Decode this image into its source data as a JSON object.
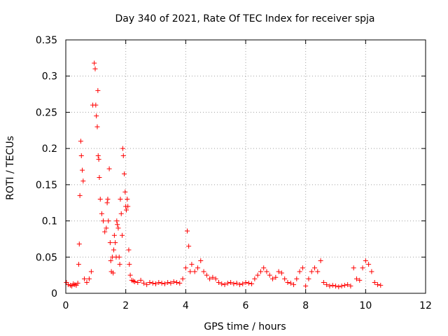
{
  "chart_data": {
    "type": "scatter",
    "title": "Day 340 of 2021, Rate Of TEC Index for receiver spja",
    "xlabel": "GPS time / hours",
    "ylabel": "ROTI / TECUs",
    "xlim": [
      0,
      12
    ],
    "ylim": [
      0,
      0.35
    ],
    "xticks": [
      0,
      2,
      4,
      6,
      8,
      10,
      12
    ],
    "xtick_labels": [
      "0",
      "2",
      "4",
      "6",
      "8",
      "10",
      "12"
    ],
    "yticks": [
      0,
      0.05,
      0.1,
      0.15,
      0.2,
      0.25,
      0.3,
      0.35
    ],
    "ytick_labels": [
      "0",
      "0.05",
      "0.1",
      "0.15",
      "0.2",
      "0.25",
      "0.3",
      "0.35"
    ],
    "grid": true,
    "marker": "+",
    "color": "#ff0000",
    "series": [
      {
        "name": "ROTI",
        "x": [
          0.02,
          0.08,
          0.15,
          0.2,
          0.25,
          0.3,
          0.35,
          0.4,
          0.43,
          0.45,
          0.47,
          0.5,
          0.52,
          0.55,
          0.58,
          0.62,
          0.7,
          0.78,
          0.85,
          0.9,
          0.95,
          0.98,
          1.0,
          1.02,
          1.05,
          1.07,
          1.08,
          1.1,
          1.12,
          1.15,
          1.2,
          1.25,
          1.3,
          1.35,
          1.38,
          1.4,
          1.42,
          1.45,
          1.48,
          1.5,
          1.52,
          1.55,
          1.58,
          1.6,
          1.62,
          1.65,
          1.68,
          1.7,
          1.72,
          1.75,
          1.78,
          1.8,
          1.82,
          1.85,
          1.88,
          1.9,
          1.92,
          1.95,
          1.98,
          2.0,
          2.02,
          2.05,
          2.07,
          2.1,
          2.12,
          2.15,
          2.2,
          2.25,
          2.3,
          2.4,
          2.5,
          2.6,
          2.7,
          2.8,
          2.9,
          3.0,
          3.1,
          3.2,
          3.3,
          3.4,
          3.5,
          3.6,
          3.7,
          3.8,
          3.9,
          4.0,
          4.05,
          4.1,
          4.15,
          4.2,
          4.3,
          4.4,
          4.5,
          4.6,
          4.7,
          4.8,
          4.9,
          5.0,
          5.1,
          5.2,
          5.3,
          5.4,
          5.5,
          5.6,
          5.7,
          5.8,
          5.9,
          6.0,
          6.1,
          6.2,
          6.3,
          6.4,
          6.5,
          6.6,
          6.7,
          6.8,
          6.9,
          7.0,
          7.1,
          7.2,
          7.3,
          7.4,
          7.5,
          7.6,
          7.7,
          7.8,
          7.9,
          8.0,
          8.1,
          8.2,
          8.3,
          8.4,
          8.5,
          8.6,
          8.7,
          8.8,
          8.9,
          9.0,
          9.1,
          9.2,
          9.3,
          9.4,
          9.5,
          9.6,
          9.7,
          9.8,
          9.9,
          10.0,
          10.1,
          10.2,
          10.3,
          10.4,
          10.5
        ],
        "y": [
          0.015,
          0.012,
          0.011,
          0.01,
          0.013,
          0.012,
          0.011,
          0.014,
          0.04,
          0.068,
          0.135,
          0.21,
          0.19,
          0.17,
          0.155,
          0.02,
          0.015,
          0.02,
          0.03,
          0.26,
          0.318,
          0.31,
          0.26,
          0.245,
          0.23,
          0.28,
          0.19,
          0.185,
          0.16,
          0.13,
          0.11,
          0.1,
          0.085,
          0.09,
          0.125,
          0.13,
          0.1,
          0.172,
          0.07,
          0.045,
          0.03,
          0.05,
          0.028,
          0.06,
          0.08,
          0.07,
          0.05,
          0.1,
          0.095,
          0.09,
          0.05,
          0.04,
          0.13,
          0.11,
          0.08,
          0.2,
          0.19,
          0.165,
          0.14,
          0.12,
          0.115,
          0.13,
          0.12,
          0.06,
          0.04,
          0.025,
          0.018,
          0.017,
          0.016,
          0.015,
          0.018,
          0.014,
          0.012,
          0.015,
          0.014,
          0.013,
          0.015,
          0.014,
          0.013,
          0.015,
          0.014,
          0.016,
          0.015,
          0.014,
          0.02,
          0.035,
          0.086,
          0.065,
          0.03,
          0.04,
          0.03,
          0.035,
          0.045,
          0.03,
          0.025,
          0.02,
          0.022,
          0.02,
          0.015,
          0.013,
          0.012,
          0.014,
          0.015,
          0.013,
          0.014,
          0.012,
          0.013,
          0.015,
          0.014,
          0.013,
          0.02,
          0.025,
          0.03,
          0.035,
          0.03,
          0.025,
          0.02,
          0.022,
          0.03,
          0.028,
          0.02,
          0.015,
          0.014,
          0.012,
          0.02,
          0.03,
          0.035,
          0.01,
          0.02,
          0.03,
          0.035,
          0.03,
          0.045,
          0.015,
          0.012,
          0.01,
          0.011,
          0.01,
          0.009,
          0.01,
          0.011,
          0.012,
          0.01,
          0.035,
          0.02,
          0.018,
          0.035,
          0.045,
          0.04,
          0.03,
          0.015,
          0.012,
          0.011
        ]
      }
    ]
  }
}
